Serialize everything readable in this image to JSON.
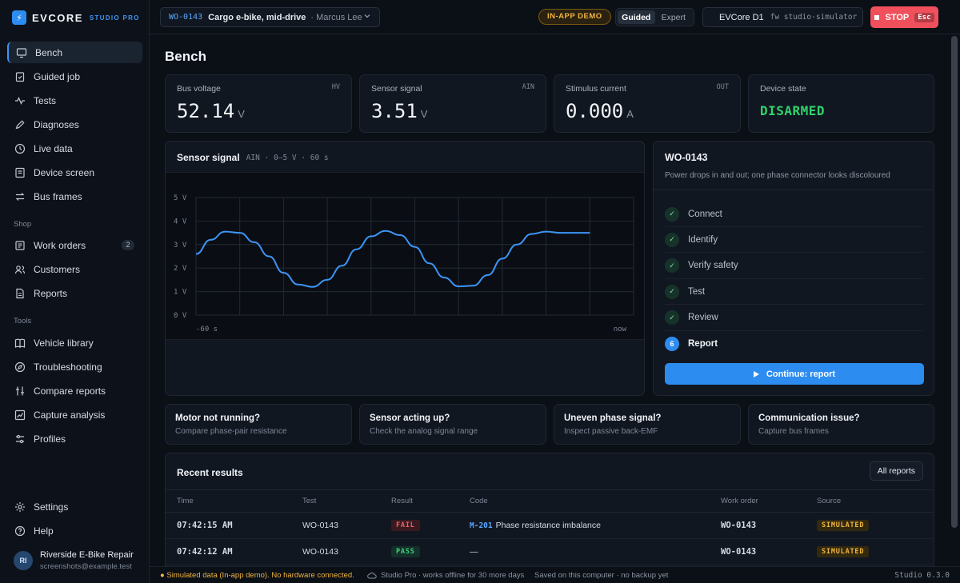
{
  "brand": {
    "name": "EVCORE",
    "sub": "STUDIO PRO",
    "logo_glyph": "⚡"
  },
  "sidebar": {
    "main": [
      {
        "label": "Bench",
        "icon": "monitor-icon",
        "active": true
      },
      {
        "label": "Guided job",
        "icon": "clipboard-check-icon"
      },
      {
        "label": "Tests",
        "icon": "activity-icon"
      },
      {
        "label": "Diagnoses",
        "icon": "pencil-icon"
      },
      {
        "label": "Live data",
        "icon": "gauge-icon"
      },
      {
        "label": "Device screen",
        "icon": "screen-icon"
      },
      {
        "label": "Bus frames",
        "icon": "arrows-exchange-icon"
      }
    ],
    "shop_label": "Shop",
    "shop": [
      {
        "label": "Work orders",
        "icon": "list-icon",
        "badge": "2"
      },
      {
        "label": "Customers",
        "icon": "users-icon"
      },
      {
        "label": "Reports",
        "icon": "file-text-icon"
      }
    ],
    "tools_label": "Tools",
    "tools": [
      {
        "label": "Vehicle library",
        "icon": "book-icon"
      },
      {
        "label": "Troubleshooting",
        "icon": "compass-icon"
      },
      {
        "label": "Compare reports",
        "icon": "compare-icon"
      },
      {
        "label": "Capture analysis",
        "icon": "chart-line-icon"
      },
      {
        "label": "Profiles",
        "icon": "sliders-icon"
      }
    ],
    "bottom": [
      {
        "label": "Settings",
        "icon": "gear-icon"
      },
      {
        "label": "Help",
        "icon": "help-circle-icon"
      }
    ],
    "user": {
      "initials": "RI",
      "name": "Riverside E-Bike Repair",
      "email": "screenshots@example.test"
    }
  },
  "topbar": {
    "wo_id": "WO-0143",
    "wo_desc": "Cargo e-bike, mid-drive",
    "wo_tech": "· Marcus Lee",
    "demo_badge": "IN-APP DEMO",
    "mode_guided": "Guided",
    "mode_expert": "Expert",
    "device_name": "EVCore D1",
    "device_fw": "fw studio-simulator",
    "stop_label": "STOP",
    "stop_key": "Esc"
  },
  "page": {
    "title": "Bench"
  },
  "metrics": [
    {
      "label": "Bus voltage",
      "tag": "HV",
      "value": "52.14",
      "unit": "V"
    },
    {
      "label": "Sensor signal",
      "tag": "AIN",
      "value": "3.51",
      "unit": "V"
    },
    {
      "label": "Stimulus current",
      "tag": "OUT",
      "value": "0.000",
      "unit": "A"
    },
    {
      "label": "Device state",
      "tag": "",
      "state": "DISARMED"
    }
  ],
  "chart": {
    "title": "Sensor signal",
    "subtitle": "AIN · 0–5 V · 60 s",
    "y_ticks": [
      "5 V",
      "4 V",
      "3 V",
      "2 V",
      "1 V",
      "0 V"
    ],
    "x_start_label": "-60 s",
    "x_end_label": "now",
    "line_color": "#3d95f5"
  },
  "chart_data": {
    "type": "line",
    "title": "Sensor signal",
    "xlabel": "",
    "ylabel": "",
    "xlim": [
      -60,
      0
    ],
    "ylim": [
      0,
      5
    ],
    "grid": true,
    "x": [
      -60,
      -58,
      -56,
      -54,
      -52,
      -50,
      -48,
      -46,
      -44,
      -42,
      -40,
      -38,
      -36,
      -34,
      -32,
      -30,
      -28,
      -26,
      -24,
      -22,
      -20,
      -18,
      -16,
      -14,
      -12,
      -10,
      -8,
      -6
    ],
    "series": [
      {
        "values": [
          2.6,
          3.2,
          3.55,
          3.5,
          3.1,
          2.5,
          1.8,
          1.3,
          1.2,
          1.5,
          2.1,
          2.8,
          3.35,
          3.58,
          3.4,
          2.9,
          2.2,
          1.6,
          1.22,
          1.25,
          1.7,
          2.4,
          3.0,
          3.45,
          3.55,
          3.5,
          3.5,
          3.5
        ]
      }
    ]
  },
  "job": {
    "id": "WO-0143",
    "desc": "Power drops in and out; one phase connector looks discoloured",
    "steps": [
      {
        "label": "Connect",
        "done": true
      },
      {
        "label": "Identify",
        "done": true
      },
      {
        "label": "Verify safety",
        "done": true
      },
      {
        "label": "Test",
        "done": true
      },
      {
        "label": "Review",
        "done": true
      },
      {
        "label": "Report",
        "done": false,
        "number": "6"
      }
    ],
    "check_glyph": "✓",
    "continue_label": "Continue: report"
  },
  "hints": [
    {
      "title": "Motor not running?",
      "sub": "Compare phase-pair resistance"
    },
    {
      "title": "Sensor acting up?",
      "sub": "Check the analog signal range"
    },
    {
      "title": "Uneven phase signal?",
      "sub": "Inspect passive back-EMF"
    },
    {
      "title": "Communication issue?",
      "sub": "Capture bus frames"
    }
  ],
  "results": {
    "title": "Recent results",
    "all_reports": "All reports",
    "columns": [
      "Time",
      "Test",
      "Result",
      "Code",
      "Work order",
      "Source"
    ],
    "rows": [
      {
        "time": "07:42:15 AM",
        "test": "WO-0143",
        "result": "FAIL",
        "code_id": "M-201",
        "code_text": "Phase resistance imbalance",
        "work_order": "WO-0143",
        "source": "SIMULATED"
      },
      {
        "time": "07:42:12 AM",
        "test": "WO-0143",
        "result": "PASS",
        "code_id": "",
        "code_text": "—",
        "work_order": "WO-0143",
        "source": "SIMULATED"
      }
    ]
  },
  "footer": {
    "warning": "● Simulated data (In-app demo). No hardware connected.",
    "cloud": "Studio Pro · works offline for 30 more days",
    "saved": "Saved on this computer · no backup yet",
    "version": "Studio 0.3.0"
  },
  "colors": {
    "accent": "#2d8cf0",
    "ok": "#30d36a",
    "warn": "#f0b540",
    "danger": "#f0505c"
  }
}
